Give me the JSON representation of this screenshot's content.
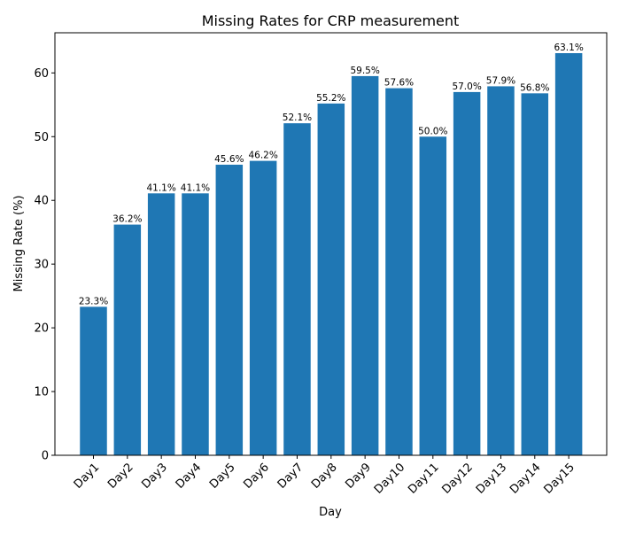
{
  "chart_data": {
    "type": "bar",
    "title": "Missing Rates for CRP measurement",
    "xlabel": "Day",
    "ylabel": "Missing Rate (%)",
    "categories": [
      "Day1",
      "Day2",
      "Day3",
      "Day4",
      "Day5",
      "Day6",
      "Day7",
      "Day8",
      "Day9",
      "Day10",
      "Day11",
      "Day12",
      "Day13",
      "Day14",
      "Day15"
    ],
    "values": [
      23.3,
      36.2,
      41.1,
      41.1,
      45.6,
      46.2,
      52.1,
      55.2,
      59.5,
      57.6,
      50.0,
      57.0,
      57.9,
      56.8,
      63.1
    ],
    "data_labels": [
      "23.3%",
      "36.2%",
      "41.1%",
      "41.1%",
      "45.6%",
      "46.2%",
      "52.1%",
      "55.2%",
      "59.5%",
      "57.6%",
      "50.0%",
      "57.0%",
      "57.9%",
      "56.8%",
      "63.1%"
    ],
    "yticks": [
      0,
      10,
      20,
      30,
      40,
      50,
      60
    ],
    "ylim": [
      0,
      66.3
    ],
    "bar_color": "#1f77b4",
    "grid": false,
    "legend": "none"
  }
}
